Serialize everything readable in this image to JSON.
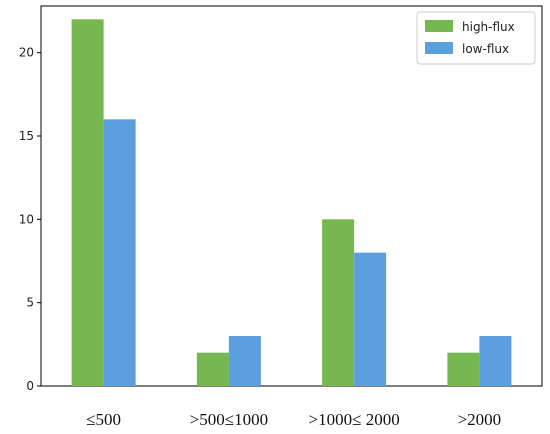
{
  "chart_data": {
    "type": "bar",
    "categories": [
      "≤500",
      ">500≤1000",
      ">1000≤ 2000",
      ">2000"
    ],
    "series": [
      {
        "name": "high-flux",
        "values": [
          22,
          2,
          10,
          2
        ],
        "color": "#77b74f"
      },
      {
        "name": "low-flux",
        "values": [
          16,
          3,
          8,
          3
        ],
        "color": "#5b9fdf"
      }
    ],
    "yticks": [
      0,
      5,
      10,
      15,
      20
    ],
    "ylim": [
      0,
      22.8
    ],
    "grid": false,
    "legend_position": "top-right"
  }
}
